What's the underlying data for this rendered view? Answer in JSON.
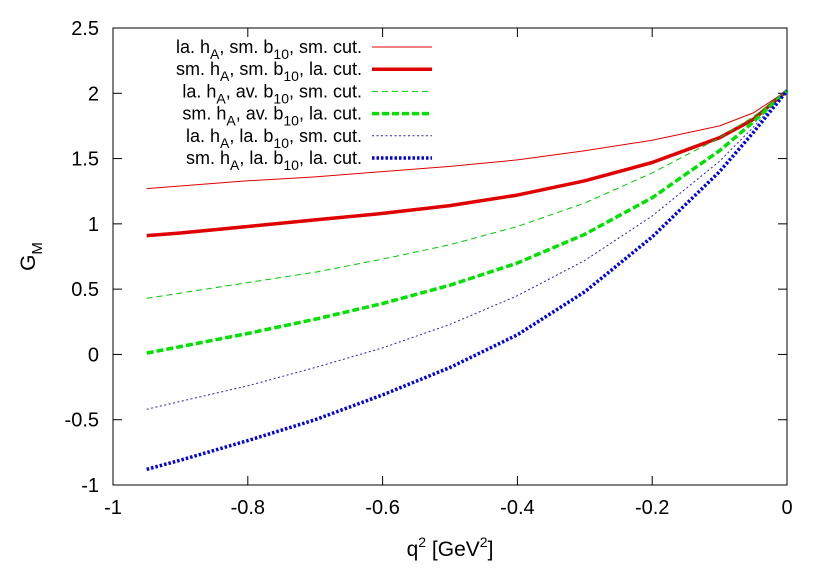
{
  "chart_data": {
    "type": "line",
    "xlabel": {
      "base": "q",
      "sup": "2",
      "rest": " [GeV",
      "sup2": "2",
      "end": "]"
    },
    "ylabel": {
      "base": "G",
      "sub": "M"
    },
    "xlim": [
      -1,
      0
    ],
    "ylim": [
      -1,
      2.5
    ],
    "xticks": [
      "-1",
      "-0.8",
      "-0.6",
      "-0.4",
      "-0.2",
      "0"
    ],
    "yticks": [
      "-1",
      "-0.5",
      "0",
      "0.5",
      "1",
      "1.5",
      "2",
      "2.5"
    ],
    "grid": false,
    "legend_position": "top-right",
    "x": [
      -0.95,
      -0.9,
      -0.8,
      -0.7,
      -0.6,
      -0.5,
      -0.4,
      -0.3,
      -0.2,
      -0.1,
      -0.05,
      0
    ],
    "series": [
      {
        "legend": [
          "la. h",
          "A",
          ", sm. b",
          "10",
          ", sm. cut."
        ],
        "color": "#e00000",
        "width": 1,
        "dash": "",
        "values": [
          1.27,
          1.29,
          1.33,
          1.36,
          1.4,
          1.44,
          1.49,
          1.56,
          1.64,
          1.75,
          1.85,
          2.02
        ]
      },
      {
        "legend": [
          "sm. h",
          "A",
          ", sm. b",
          "10",
          ", la. cut."
        ],
        "color": "#e00000",
        "width": 3.5,
        "dash": "",
        "values": [
          0.91,
          0.93,
          0.98,
          1.03,
          1.08,
          1.14,
          1.22,
          1.33,
          1.47,
          1.66,
          1.8,
          2.02
        ]
      },
      {
        "legend": [
          "la. h",
          "A",
          ", av. b",
          "10",
          ", sm. cut."
        ],
        "color": "#00c800",
        "width": 1,
        "dash": "6,4",
        "values": [
          0.43,
          0.47,
          0.55,
          0.63,
          0.73,
          0.84,
          0.98,
          1.16,
          1.39,
          1.66,
          1.82,
          2.02
        ]
      },
      {
        "legend": [
          "sm. h",
          "A",
          ", av. b",
          "10",
          ", la. cut."
        ],
        "color": "#00e000",
        "width": 3.5,
        "dash": "7,3",
        "values": [
          0.01,
          0.06,
          0.16,
          0.27,
          0.39,
          0.53,
          0.7,
          0.92,
          1.2,
          1.56,
          1.78,
          2.02
        ]
      },
      {
        "legend": [
          "la. h",
          "A",
          ", la. b",
          "10",
          ", sm. cut."
        ],
        "color": "#2020c0",
        "width": 1,
        "dash": "2,2.5",
        "values": [
          -0.42,
          -0.36,
          -0.24,
          -0.1,
          0.05,
          0.23,
          0.45,
          0.72,
          1.06,
          1.48,
          1.74,
          2.02
        ]
      },
      {
        "legend": [
          "sm. h",
          "A",
          ", la. b",
          "10",
          ", la. cut."
        ],
        "color": "#0000e6",
        "width": 3.5,
        "dash": "2.5,2",
        "values": [
          -0.88,
          -0.81,
          -0.66,
          -0.5,
          -0.31,
          -0.1,
          0.15,
          0.48,
          0.9,
          1.4,
          1.7,
          2.02
        ]
      }
    ]
  }
}
